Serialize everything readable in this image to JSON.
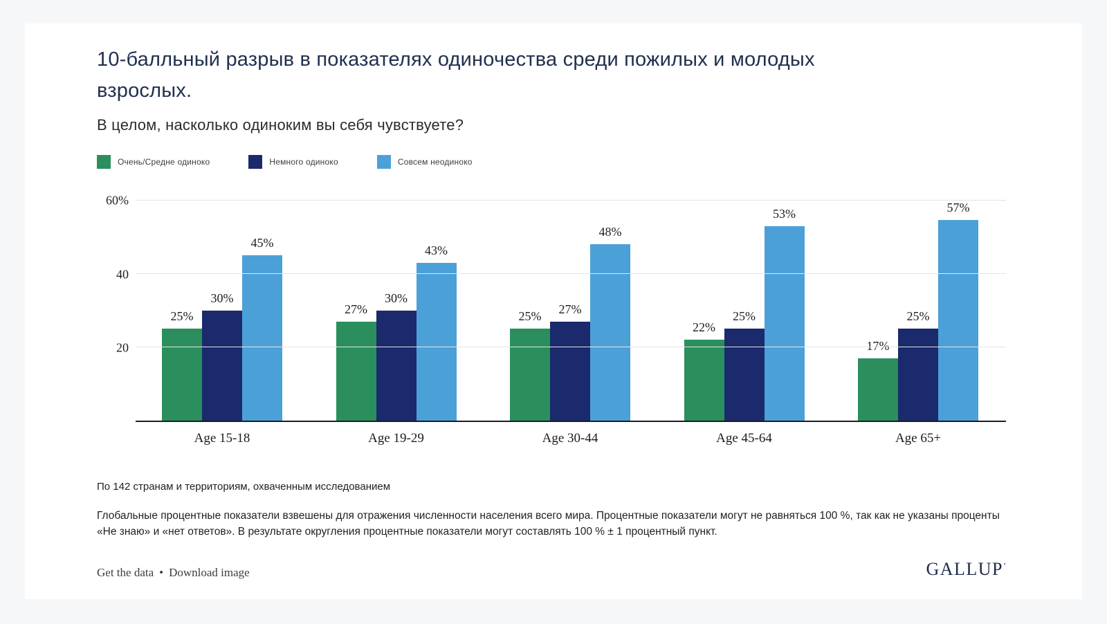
{
  "header": {
    "title": "10-балльный разрыв в показателях одиночества среди пожилых и молодых взрослых.",
    "subtitle": "В целом, насколько одиноким вы себя чувствуете?"
  },
  "chart_data": {
    "type": "bar",
    "categories": [
      "Age 15-18",
      "Age 19-29",
      "Age 30-44",
      "Age 45-64",
      "Age 65+"
    ],
    "series": [
      {
        "name": "Очень/Средне одиноко",
        "color": "#2a8f5d",
        "values": [
          25,
          27,
          25,
          22,
          17
        ]
      },
      {
        "name": "Немного одиноко",
        "color": "#1a2a6c",
        "values": [
          30,
          30,
          27,
          25,
          25
        ]
      },
      {
        "name": "Совсем неодиноко",
        "color": "#4ca0d8",
        "values": [
          45,
          43,
          48,
          53,
          57
        ]
      }
    ],
    "title": "10-балльный разрыв в показателях одиночества среди пожилых и молодых взрослых.",
    "subtitle": "В целом, насколько одиноким вы себя чувствуете?",
    "xlabel": "",
    "ylabel": "",
    "ylim": [
      0,
      60
    ],
    "yticks": [
      {
        "value": 60,
        "label": "60%"
      },
      {
        "value": 40,
        "label": "40"
      },
      {
        "value": 20,
        "label": "20"
      }
    ],
    "value_suffix": "%",
    "grid": true,
    "legend_position": "top"
  },
  "footnotes": {
    "coverage": "По 142 странам и территориям, охваченным исследованием",
    "methodology": "Глобальные процентные показатели взвешены для отражения численности населения всего мира. Процентные показатели могут не равняться 100 %, так как не указаны проценты «Не знаю» и «нет ответов». В результате округления процентные показатели могут составлять 100 % ± 1 процентный пункт."
  },
  "footer": {
    "get_data_label": "Get the data",
    "separator": "•",
    "download_label": "Download image",
    "brand": "GALLUP",
    "brand_mark": "’"
  }
}
